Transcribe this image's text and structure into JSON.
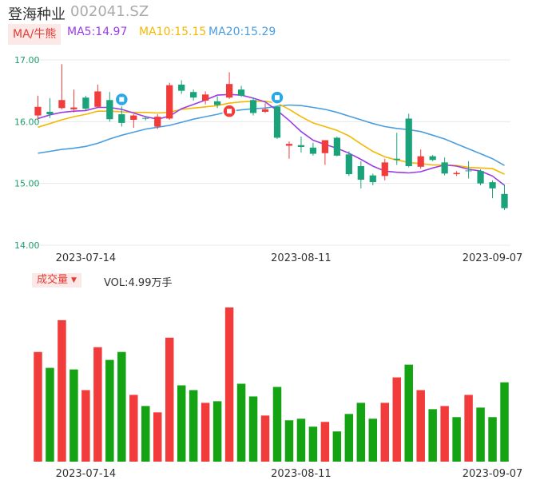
{
  "header": {
    "name": "登海种业",
    "code": "002041.SZ"
  },
  "ma_tab": "MA/牛熊",
  "ma_labels": {
    "ma5": "MA5:14.97",
    "ma10": "MA10:15.15",
    "ma20": "MA20:15.29"
  },
  "volume_tab": "成交量",
  "volume_label": "VOL:4.99万手",
  "colors": {
    "up": "#f23b3b",
    "down": "#1aa37a",
    "vol_down": "#13a313",
    "ma5": "#9c3ce6",
    "ma10": "#f5b800",
    "ma20": "#4a9ee0",
    "badge": "#2aa7e8"
  },
  "icons": {
    "dropdown": "dropdown-triangle-icon",
    "badges": [
      "buy-badge-icon",
      "sell-badge-icon"
    ]
  },
  "chart_data": [
    {
      "type": "candlestick",
      "y_ticks": [
        "17.00",
        "16.00",
        "15.00",
        "14.00"
      ],
      "ylim": [
        14,
        17
      ],
      "x_ticks": [
        "2023-07-14",
        "2023-08-11",
        "2023-09-07"
      ],
      "grid": true,
      "candles": [
        {
          "o": 16.1,
          "h": 16.42,
          "l": 16.02,
          "c": 16.24
        },
        {
          "o": 16.16,
          "h": 16.38,
          "l": 16.06,
          "c": 16.12
        },
        {
          "o": 16.22,
          "h": 16.93,
          "l": 16.2,
          "c": 16.35
        },
        {
          "o": 16.2,
          "h": 16.52,
          "l": 16.15,
          "c": 16.23
        },
        {
          "o": 16.39,
          "h": 16.42,
          "l": 16.18,
          "c": 16.21
        },
        {
          "o": 16.24,
          "h": 16.6,
          "l": 16.22,
          "c": 16.49
        },
        {
          "o": 16.35,
          "h": 16.48,
          "l": 16.0,
          "c": 16.04
        },
        {
          "o": 16.12,
          "h": 16.25,
          "l": 15.92,
          "c": 15.98
        },
        {
          "o": 16.03,
          "h": 16.12,
          "l": 15.9,
          "c": 16.1
        },
        {
          "o": 16.06,
          "h": 16.08,
          "l": 16.02,
          "c": 16.05
        },
        {
          "o": 15.92,
          "h": 16.12,
          "l": 15.88,
          "c": 16.08
        },
        {
          "o": 16.05,
          "h": 16.63,
          "l": 16.03,
          "c": 16.59
        },
        {
          "o": 16.6,
          "h": 16.67,
          "l": 16.45,
          "c": 16.5
        },
        {
          "o": 16.48,
          "h": 16.52,
          "l": 16.34,
          "c": 16.39
        },
        {
          "o": 16.34,
          "h": 16.49,
          "l": 16.28,
          "c": 16.44
        },
        {
          "o": 16.33,
          "h": 16.41,
          "l": 16.22,
          "c": 16.27
        },
        {
          "o": 16.39,
          "h": 16.8,
          "l": 16.37,
          "c": 16.61
        },
        {
          "o": 16.52,
          "h": 16.58,
          "l": 16.4,
          "c": 16.42
        },
        {
          "o": 16.35,
          "h": 16.38,
          "l": 16.1,
          "c": 16.14
        },
        {
          "o": 16.16,
          "h": 16.3,
          "l": 16.14,
          "c": 16.2
        },
        {
          "o": 16.24,
          "h": 16.26,
          "l": 15.72,
          "c": 15.74
        },
        {
          "o": 15.61,
          "h": 15.68,
          "l": 15.4,
          "c": 15.64
        },
        {
          "o": 15.62,
          "h": 15.76,
          "l": 15.5,
          "c": 15.59
        },
        {
          "o": 15.58,
          "h": 15.66,
          "l": 15.45,
          "c": 15.48
        },
        {
          "o": 15.49,
          "h": 15.7,
          "l": 15.3,
          "c": 15.7
        },
        {
          "o": 15.74,
          "h": 15.76,
          "l": 15.44,
          "c": 15.45
        },
        {
          "o": 15.47,
          "h": 15.52,
          "l": 15.12,
          "c": 15.15
        },
        {
          "o": 15.28,
          "h": 15.36,
          "l": 14.92,
          "c": 15.06
        },
        {
          "o": 15.13,
          "h": 15.16,
          "l": 14.97,
          "c": 15.02
        },
        {
          "o": 15.12,
          "h": 15.4,
          "l": 15.05,
          "c": 15.34
        },
        {
          "o": 15.4,
          "h": 15.82,
          "l": 15.3,
          "c": 15.38
        },
        {
          "o": 16.05,
          "h": 16.13,
          "l": 15.26,
          "c": 15.28
        },
        {
          "o": 15.27,
          "h": 15.55,
          "l": 15.24,
          "c": 15.44
        },
        {
          "o": 15.44,
          "h": 15.46,
          "l": 15.36,
          "c": 15.38
        },
        {
          "o": 15.34,
          "h": 15.42,
          "l": 15.13,
          "c": 15.16
        },
        {
          "o": 15.15,
          "h": 15.2,
          "l": 15.12,
          "c": 15.17
        },
        {
          "o": 15.21,
          "h": 15.36,
          "l": 15.08,
          "c": 15.2
        },
        {
          "o": 15.2,
          "h": 15.23,
          "l": 14.97,
          "c": 15.0
        },
        {
          "o": 15.02,
          "h": 15.05,
          "l": 14.76,
          "c": 14.92
        },
        {
          "o": 14.83,
          "h": 14.98,
          "l": 14.57,
          "c": 14.6
        }
      ],
      "ma5": [
        16.05,
        16.11,
        16.15,
        16.17,
        16.18,
        16.23,
        16.23,
        16.2,
        16.14,
        16.08,
        16.04,
        16.09,
        16.21,
        16.28,
        16.35,
        16.43,
        16.44,
        16.43,
        16.38,
        16.32,
        16.18,
        16.02,
        15.84,
        15.7,
        15.63,
        15.57,
        15.49,
        15.39,
        15.28,
        15.2,
        15.18,
        15.17,
        15.19,
        15.25,
        15.3,
        15.28,
        15.23,
        15.2,
        15.12,
        14.97
      ],
      "ma10": [
        15.91,
        15.97,
        16.03,
        16.08,
        16.12,
        16.17,
        16.17,
        16.16,
        16.15,
        16.15,
        16.14,
        16.15,
        16.2,
        16.22,
        16.24,
        16.26,
        16.3,
        16.32,
        16.33,
        16.33,
        16.3,
        16.2,
        16.08,
        15.98,
        15.92,
        15.86,
        15.77,
        15.64,
        15.52,
        15.43,
        15.38,
        15.34,
        15.32,
        15.3,
        15.3,
        15.29,
        15.26,
        15.25,
        15.24,
        15.15
      ],
      "ma20": [
        15.49,
        15.52,
        15.55,
        15.57,
        15.6,
        15.65,
        15.72,
        15.78,
        15.83,
        15.88,
        15.91,
        15.94,
        15.99,
        16.04,
        16.08,
        16.12,
        16.17,
        16.19,
        16.21,
        16.22,
        16.25,
        16.27,
        16.26,
        16.23,
        16.2,
        16.15,
        16.09,
        16.03,
        15.97,
        15.92,
        15.89,
        15.87,
        15.84,
        15.78,
        15.72,
        15.64,
        15.56,
        15.48,
        15.4,
        15.29
      ]
    },
    {
      "type": "bar",
      "title": "成交量",
      "x_ticks": [
        "2023-07-14",
        "2023-08-11",
        "2023-09-07"
      ],
      "ylim": [
        0,
        10
      ],
      "up": [
        1,
        0,
        1,
        0,
        1,
        1,
        0,
        0,
        1,
        0,
        1,
        1,
        0,
        0,
        1,
        0,
        1,
        0,
        0,
        1,
        0,
        0,
        0,
        0,
        1,
        0,
        0,
        0,
        0,
        1,
        1,
        0,
        1,
        0,
        1,
        0,
        1,
        0,
        0,
        0
      ],
      "values": [
        6.9,
        5.9,
        8.9,
        5.8,
        4.5,
        7.2,
        6.4,
        6.9,
        4.2,
        3.5,
        3.1,
        7.8,
        4.8,
        4.5,
        3.7,
        3.8,
        9.7,
        4.9,
        4.1,
        2.9,
        4.7,
        2.6,
        2.7,
        2.2,
        2.5,
        1.9,
        3.0,
        3.7,
        2.7,
        3.7,
        5.3,
        6.1,
        4.5,
        3.3,
        3.5,
        2.8,
        4.2,
        3.4,
        2.8,
        4.99
      ]
    }
  ]
}
